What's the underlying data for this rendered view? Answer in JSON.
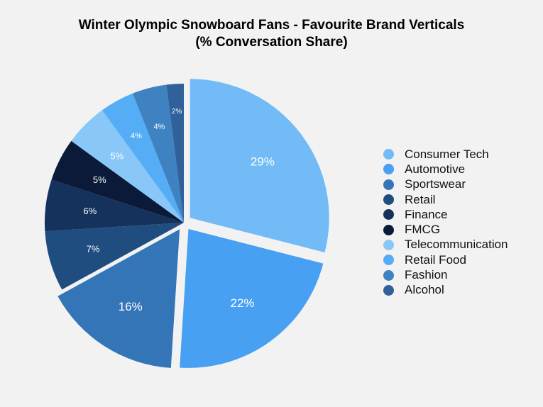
{
  "chart_data": {
    "type": "pie",
    "title_lines": [
      "Winter Olympic Snowboard Fans - Favourite Brand Verticals",
      "(% Conversation Share)"
    ],
    "unit": "%",
    "legend_position": "right",
    "slices": [
      {
        "label": "Consumer Tech",
        "value": 29,
        "display": "29%",
        "color": "#72bbf7",
        "exploded": true
      },
      {
        "label": "Automotive",
        "value": 22,
        "display": "22%",
        "color": "#47a0f2",
        "exploded": true
      },
      {
        "label": "Sportswear",
        "value": 16,
        "display": "16%",
        "color": "#3475b8",
        "exploded": true
      },
      {
        "label": "Retail",
        "value": 7,
        "display": "7%",
        "color": "#1f4d80",
        "exploded": false
      },
      {
        "label": "Finance",
        "value": 6,
        "display": "6%",
        "color": "#15325d",
        "exploded": false
      },
      {
        "label": "FMCG",
        "value": 5,
        "display": "5%",
        "color": "#0a1a38",
        "exploded": false
      },
      {
        "label": "Telecommunication",
        "value": 5,
        "display": "5%",
        "color": "#88c7f7",
        "exploded": false
      },
      {
        "label": "Retail Food",
        "value": 4,
        "display": "4%",
        "color": "#55adf5",
        "exploded": false
      },
      {
        "label": "Fashion",
        "value": 4,
        "display": "4%",
        "color": "#3e82c2",
        "exploded": false
      },
      {
        "label": "Alcohol",
        "value": 2,
        "display": "2%",
        "color": "#30619a",
        "exploded": false
      }
    ]
  }
}
